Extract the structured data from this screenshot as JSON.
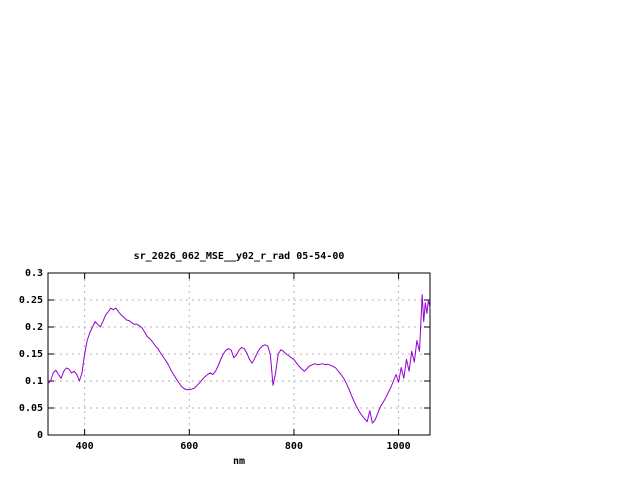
{
  "chart": {
    "title": "sr_2026_062_MSE__y02_r_rad 05-54-00",
    "xlabel": "nm",
    "background": "#ffffff",
    "border_color": "#000000",
    "grid_color": "#b4b4b4",
    "line_color": "#9400d3"
  },
  "chart_data": {
    "type": "line",
    "title": "sr_2026_062_MSE__y02_r_rad 05-54-00",
    "xlabel": "nm",
    "ylabel": "",
    "xlim": [
      330,
      1060
    ],
    "ylim": [
      0,
      0.3
    ],
    "xticks": [
      400,
      600,
      800,
      1000
    ],
    "xtick_labels": [
      "400",
      "600",
      "800",
      "1000"
    ],
    "yticks": [
      0,
      0.05,
      0.1,
      0.15,
      0.2,
      0.25,
      0.3
    ],
    "ytick_labels": [
      "0",
      "0.05",
      "0.1",
      "0.15",
      "0.2",
      "0.25",
      "0.3"
    ],
    "grid": true,
    "legend": "none",
    "series": [
      {
        "name": "sr_2026_062_MSE__y02_r_rad",
        "color": "#9400d3",
        "points": [
          [
            330,
            0.095
          ],
          [
            335,
            0.1
          ],
          [
            340,
            0.115
          ],
          [
            345,
            0.12
          ],
          [
            350,
            0.112
          ],
          [
            355,
            0.105
          ],
          [
            360,
            0.118
          ],
          [
            365,
            0.124
          ],
          [
            370,
            0.122
          ],
          [
            375,
            0.115
          ],
          [
            380,
            0.118
          ],
          [
            385,
            0.112
          ],
          [
            390,
            0.1
          ],
          [
            395,
            0.115
          ],
          [
            400,
            0.15
          ],
          [
            405,
            0.175
          ],
          [
            410,
            0.19
          ],
          [
            415,
            0.2
          ],
          [
            420,
            0.21
          ],
          [
            425,
            0.205
          ],
          [
            430,
            0.2
          ],
          [
            435,
            0.21
          ],
          [
            440,
            0.222
          ],
          [
            445,
            0.228
          ],
          [
            450,
            0.235
          ],
          [
            455,
            0.232
          ],
          [
            460,
            0.235
          ],
          [
            465,
            0.228
          ],
          [
            470,
            0.222
          ],
          [
            475,
            0.218
          ],
          [
            480,
            0.213
          ],
          [
            485,
            0.212
          ],
          [
            490,
            0.208
          ],
          [
            495,
            0.205
          ],
          [
            500,
            0.205
          ],
          [
            505,
            0.202
          ],
          [
            510,
            0.198
          ],
          [
            515,
            0.19
          ],
          [
            520,
            0.182
          ],
          [
            525,
            0.178
          ],
          [
            530,
            0.172
          ],
          [
            535,
            0.165
          ],
          [
            540,
            0.16
          ],
          [
            545,
            0.152
          ],
          [
            550,
            0.145
          ],
          [
            555,
            0.138
          ],
          [
            560,
            0.13
          ],
          [
            565,
            0.12
          ],
          [
            570,
            0.112
          ],
          [
            575,
            0.104
          ],
          [
            580,
            0.097
          ],
          [
            585,
            0.09
          ],
          [
            590,
            0.086
          ],
          [
            595,
            0.084
          ],
          [
            600,
            0.084
          ],
          [
            605,
            0.085
          ],
          [
            610,
            0.087
          ],
          [
            615,
            0.092
          ],
          [
            620,
            0.097
          ],
          [
            625,
            0.103
          ],
          [
            630,
            0.108
          ],
          [
            635,
            0.112
          ],
          [
            640,
            0.115
          ],
          [
            645,
            0.112
          ],
          [
            650,
            0.118
          ],
          [
            655,
            0.128
          ],
          [
            660,
            0.14
          ],
          [
            665,
            0.15
          ],
          [
            670,
            0.157
          ],
          [
            675,
            0.16
          ],
          [
            680,
            0.157
          ],
          [
            685,
            0.143
          ],
          [
            690,
            0.148
          ],
          [
            695,
            0.157
          ],
          [
            700,
            0.162
          ],
          [
            705,
            0.16
          ],
          [
            710,
            0.152
          ],
          [
            715,
            0.14
          ],
          [
            720,
            0.133
          ],
          [
            725,
            0.142
          ],
          [
            730,
            0.152
          ],
          [
            735,
            0.16
          ],
          [
            740,
            0.165
          ],
          [
            745,
            0.167
          ],
          [
            750,
            0.165
          ],
          [
            755,
            0.148
          ],
          [
            760,
            0.092
          ],
          [
            765,
            0.115
          ],
          [
            770,
            0.15
          ],
          [
            775,
            0.158
          ],
          [
            780,
            0.155
          ],
          [
            785,
            0.15
          ],
          [
            790,
            0.147
          ],
          [
            795,
            0.143
          ],
          [
            800,
            0.14
          ],
          [
            805,
            0.133
          ],
          [
            810,
            0.127
          ],
          [
            815,
            0.122
          ],
          [
            820,
            0.118
          ],
          [
            825,
            0.123
          ],
          [
            830,
            0.128
          ],
          [
            835,
            0.13
          ],
          [
            840,
            0.132
          ],
          [
            845,
            0.13
          ],
          [
            850,
            0.131
          ],
          [
            855,
            0.132
          ],
          [
            860,
            0.13
          ],
          [
            865,
            0.131
          ],
          [
            870,
            0.129
          ],
          [
            875,
            0.127
          ],
          [
            880,
            0.124
          ],
          [
            885,
            0.118
          ],
          [
            890,
            0.112
          ],
          [
            895,
            0.105
          ],
          [
            900,
            0.096
          ],
          [
            905,
            0.085
          ],
          [
            910,
            0.073
          ],
          [
            915,
            0.062
          ],
          [
            920,
            0.052
          ],
          [
            925,
            0.043
          ],
          [
            930,
            0.036
          ],
          [
            935,
            0.03
          ],
          [
            940,
            0.025
          ],
          [
            945,
            0.045
          ],
          [
            950,
            0.022
          ],
          [
            955,
            0.028
          ],
          [
            960,
            0.04
          ],
          [
            965,
            0.052
          ],
          [
            970,
            0.06
          ],
          [
            975,
            0.068
          ],
          [
            980,
            0.078
          ],
          [
            985,
            0.088
          ],
          [
            990,
            0.1
          ],
          [
            995,
            0.112
          ],
          [
            1000,
            0.098
          ],
          [
            1005,
            0.125
          ],
          [
            1010,
            0.105
          ],
          [
            1015,
            0.14
          ],
          [
            1020,
            0.118
          ],
          [
            1025,
            0.155
          ],
          [
            1030,
            0.135
          ],
          [
            1035,
            0.175
          ],
          [
            1040,
            0.155
          ],
          [
            1045,
            0.26
          ],
          [
            1048,
            0.21
          ],
          [
            1051,
            0.245
          ],
          [
            1054,
            0.225
          ],
          [
            1057,
            0.25
          ],
          [
            1060,
            0.235
          ]
        ]
      }
    ]
  }
}
